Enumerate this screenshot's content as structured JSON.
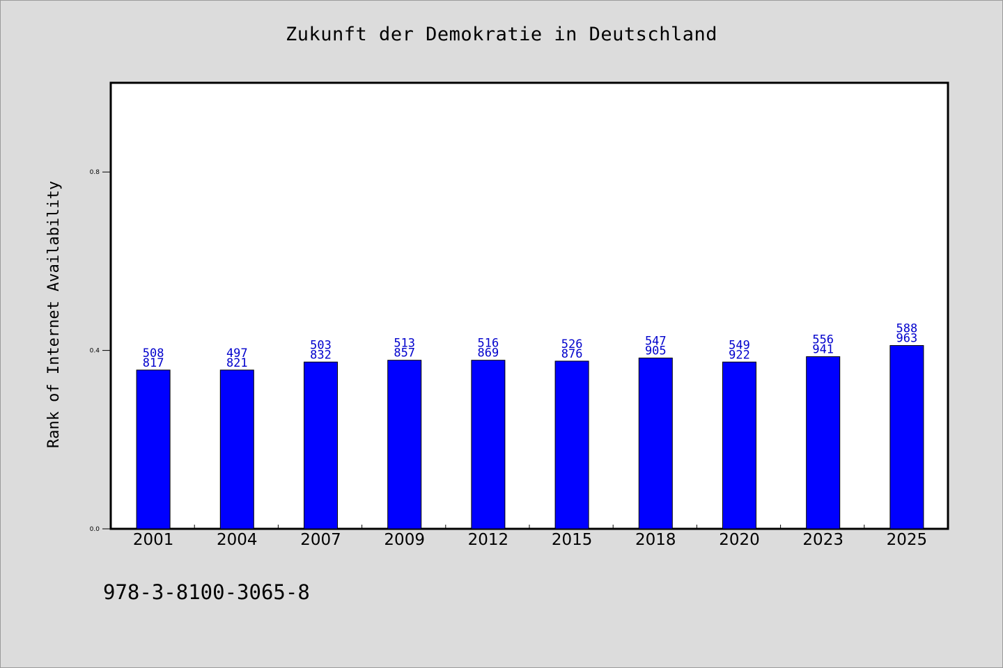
{
  "chart_data": {
    "type": "bar",
    "title": "Zukunft der Demokratie in Deutschland",
    "xlabel": "",
    "ylabel": "Rank of Internet Availability",
    "ylim": [
      0,
      1.0
    ],
    "yticks": [
      0.0,
      0.4,
      0.8
    ],
    "ytick_labels": [
      "0.0",
      "0.4",
      "0.8"
    ],
    "grid": false,
    "categories": [
      "2001",
      "2004",
      "2007",
      "2009",
      "2012",
      "2015",
      "2018",
      "2020",
      "2023",
      "2025"
    ],
    "values": [
      0.356,
      0.356,
      0.374,
      0.378,
      0.378,
      0.376,
      0.383,
      0.374,
      0.386,
      0.411
    ],
    "label_top": [
      "508",
      "497",
      "503",
      "513",
      "516",
      "526",
      "547",
      "549",
      "556",
      "588"
    ],
    "label_bottom": [
      "817",
      "821",
      "832",
      "857",
      "869",
      "876",
      "905",
      "922",
      "941",
      "963"
    ],
    "bar_color": "#0000ff",
    "label_color": "#0000cc"
  },
  "footer_text": "978-3-8100-3065-8"
}
